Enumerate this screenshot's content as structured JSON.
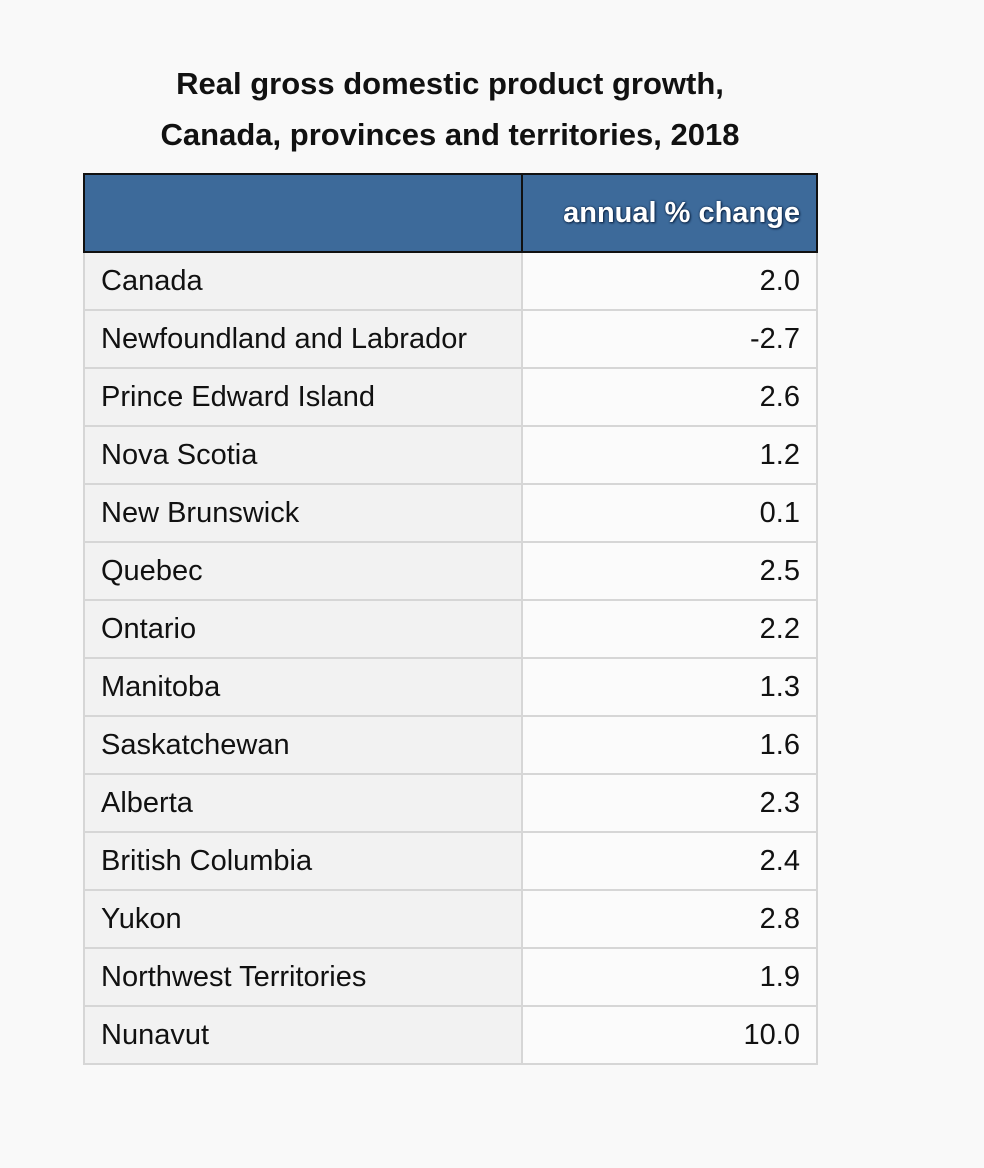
{
  "title": {
    "line1": "Real gross domestic product growth,",
    "line2": "Canada, provinces and territories, 2018"
  },
  "chart_data": {
    "type": "table",
    "title": "Real gross domestic product growth, Canada, provinces and territories, 2018",
    "columns": [
      "",
      "annual % change"
    ],
    "rows": [
      {
        "label": "Canada",
        "value": "2.0"
      },
      {
        "label": "Newfoundland and Labrador",
        "value": "-2.7"
      },
      {
        "label": "Prince Edward Island",
        "value": "2.6"
      },
      {
        "label": "Nova Scotia",
        "value": "1.2"
      },
      {
        "label": "New Brunswick",
        "value": "0.1"
      },
      {
        "label": "Quebec",
        "value": "2.5"
      },
      {
        "label": "Ontario",
        "value": "2.2"
      },
      {
        "label": "Manitoba",
        "value": "1.3"
      },
      {
        "label": "Saskatchewan",
        "value": "1.6"
      },
      {
        "label": "Alberta",
        "value": "2.3"
      },
      {
        "label": "British Columbia",
        "value": "2.4"
      },
      {
        "label": "Yukon",
        "value": "2.8"
      },
      {
        "label": "Northwest Territories",
        "value": "1.9"
      },
      {
        "label": "Nunavut",
        "value": "10.0"
      }
    ]
  },
  "colors": {
    "header_bg": "#3d6a9a",
    "header_text": "#ffffff"
  }
}
